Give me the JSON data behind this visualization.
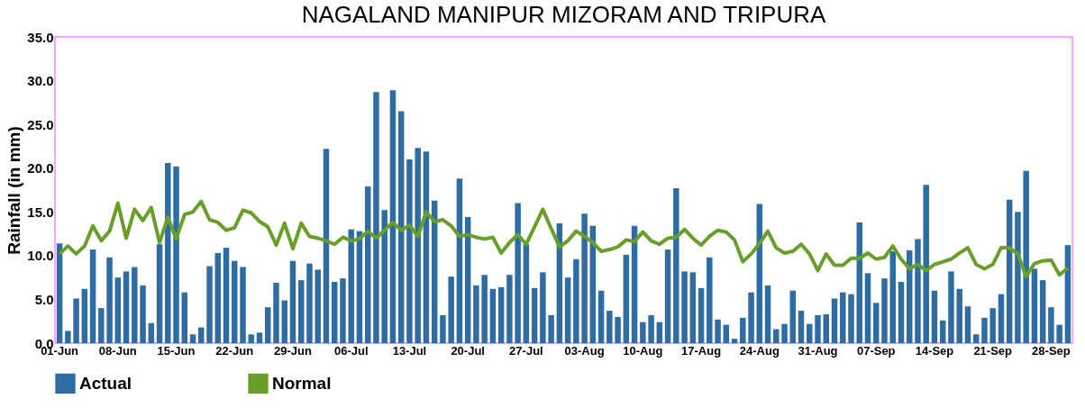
{
  "chart_data": {
    "type": "bar",
    "title": "NAGALAND MANIPUR MIZORAM AND TRIPURA",
    "ylabel": "Rainfall (in mm)",
    "categories": [
      "01-Jun",
      null,
      null,
      null,
      null,
      null,
      null,
      "08-Jun",
      null,
      null,
      null,
      null,
      null,
      null,
      "15-Jun",
      null,
      null,
      null,
      null,
      null,
      null,
      "22-Jun",
      null,
      null,
      null,
      null,
      null,
      null,
      "29-Jun",
      null,
      null,
      null,
      null,
      null,
      null,
      "06-Jul",
      null,
      null,
      null,
      null,
      null,
      null,
      "13-Jul",
      null,
      null,
      null,
      null,
      null,
      null,
      "20-Jul",
      null,
      null,
      null,
      null,
      null,
      null,
      "27-Jul",
      null,
      null,
      null,
      null,
      null,
      null,
      "03-Aug",
      null,
      null,
      null,
      null,
      null,
      null,
      "10-Aug",
      null,
      null,
      null,
      null,
      null,
      null,
      "17-Aug",
      null,
      null,
      null,
      null,
      null,
      null,
      "24-Aug",
      null,
      null,
      null,
      null,
      null,
      null,
      "31-Aug",
      null,
      null,
      null,
      null,
      null,
      null,
      "07-Sep",
      null,
      null,
      null,
      null,
      null,
      null,
      "14-Sep",
      null,
      null,
      null,
      null,
      null,
      null,
      "21-Sep",
      null,
      null,
      null,
      null,
      null,
      null,
      "28-Sep",
      null,
      null
    ],
    "series": [
      {
        "name": "Actual",
        "type": "bar",
        "color": "#2e6ca4",
        "values": [
          11.4,
          1.4,
          5.1,
          6.2,
          10.7,
          4.0,
          9.8,
          7.5,
          8.2,
          8.7,
          6.6,
          2.3,
          11.3,
          20.6,
          20.2,
          5.8,
          1.0,
          1.8,
          8.8,
          10.3,
          10.9,
          9.4,
          8.7,
          1.0,
          1.2,
          4.1,
          6.9,
          4.9,
          9.4,
          7.2,
          9.1,
          8.4,
          22.2,
          7.0,
          7.4,
          13.0,
          12.8,
          17.9,
          28.7,
          15.2,
          28.9,
          26.5,
          21.0,
          22.3,
          21.9,
          16.3,
          3.2,
          7.6,
          18.8,
          14.4,
          6.6,
          7.8,
          6.2,
          6.4,
          7.8,
          16.0,
          11.3,
          6.3,
          8.1,
          3.2,
          13.7,
          7.5,
          9.6,
          14.8,
          13.4,
          6.0,
          3.7,
          3.0,
          10.1,
          13.4,
          2.4,
          3.2,
          2.4,
          10.7,
          17.7,
          8.2,
          8.1,
          6.3,
          9.8,
          2.7,
          2.1,
          0.5,
          2.9,
          5.8,
          15.9,
          6.6,
          1.6,
          2.2,
          6.0,
          3.7,
          2.2,
          3.2,
          3.3,
          5.1,
          5.8,
          5.6,
          13.8,
          8.0,
          4.6,
          7.4,
          10.5,
          7.0,
          10.6,
          11.9,
          18.1,
          6.0,
          2.6,
          8.2,
          6.2,
          4.2,
          1.0,
          2.9,
          4.0,
          5.6,
          16.4,
          15.0,
          19.7,
          8.5,
          7.2,
          4.1,
          2.1,
          11.2
        ]
      },
      {
        "name": "Normal",
        "type": "line",
        "color": "#6a9e2a",
        "values": [
          10.2,
          11.1,
          10.2,
          11.1,
          13.4,
          11.7,
          12.8,
          16.0,
          12.0,
          15.3,
          14.0,
          15.5,
          11.5,
          14.4,
          11.9,
          14.7,
          15.0,
          16.2,
          14.1,
          13.8,
          12.9,
          13.2,
          15.2,
          14.9,
          13.9,
          13.3,
          11.2,
          13.7,
          10.8,
          13.7,
          12.2,
          12.0,
          11.7,
          11.3,
          12.1,
          11.7,
          11.9,
          12.8,
          12.0,
          12.9,
          13.8,
          12.9,
          13.5,
          12.2,
          15.0,
          13.9,
          14.1,
          13.4,
          12.2,
          12.4,
          12.1,
          11.9,
          12.1,
          10.3,
          11.5,
          12.4,
          11.3,
          13.3,
          15.3,
          13.1,
          11.0,
          11.7,
          12.8,
          12.2,
          11.5,
          10.5,
          10.7,
          11.0,
          11.8,
          11.6,
          12.7,
          11.7,
          11.3,
          12.0,
          12.1,
          13.0,
          12.0,
          11.2,
          12.2,
          12.9,
          12.7,
          11.8,
          9.3,
          10.2,
          11.4,
          12.8,
          10.9,
          10.3,
          10.5,
          11.3,
          10.2,
          8.3,
          10.2,
          8.9,
          8.9,
          9.7,
          9.7,
          10.3,
          9.6,
          9.8,
          11.1,
          9.6,
          8.5,
          9.0,
          8.3,
          9.0,
          9.3,
          9.6,
          10.3,
          10.9,
          9.0,
          8.5,
          9.0,
          10.9,
          10.9,
          10.2,
          7.6,
          9.1,
          9.4,
          9.5,
          7.8,
          8.6
        ]
      }
    ],
    "ylim": [
      0,
      35
    ],
    "yticks": [
      {
        "value": 0,
        "label": "0.0"
      },
      {
        "value": 5,
        "label": "5.0"
      },
      {
        "value": 10,
        "label": "10.0"
      },
      {
        "value": 15,
        "label": "15.0"
      },
      {
        "value": 20,
        "label": "20.0"
      },
      {
        "value": 25,
        "label": "25.0"
      },
      {
        "value": 30,
        "label": "30.0"
      },
      {
        "value": 35,
        "label": "35.0"
      }
    ],
    "grid": false,
    "legend": "bottom",
    "line_style": "solid",
    "marker": "none"
  }
}
